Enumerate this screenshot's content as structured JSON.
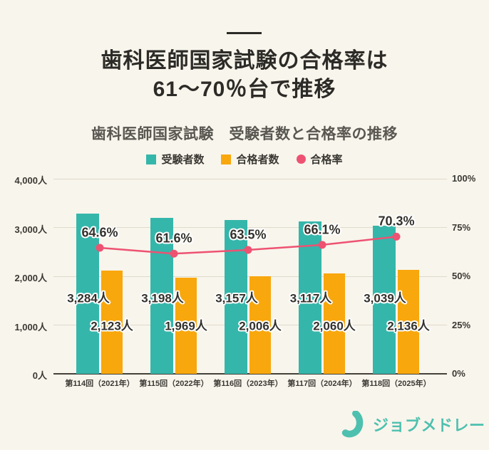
{
  "poster": {
    "title_line1": "歯科医師国家試験の合格率は",
    "title_line2": "61～70％台で推移",
    "subtitle": "歯科医師国家試験　受験者数と合格率の推移"
  },
  "colors": {
    "background": "#f8f5ec",
    "teal": "#35b6ab",
    "orange": "#f8a70d",
    "pink": "#ee5272",
    "text_dark": "#2d2b27",
    "logo_teal": "#4ec0af"
  },
  "legend": [
    {
      "label": "受験者数",
      "color": "#35b6ab",
      "shape": "square"
    },
    {
      "label": "合格者数",
      "color": "#f8a70d",
      "shape": "circle-no",
      "shape_real": "square"
    },
    {
      "label": "合格率",
      "color": "#ee5272",
      "shape": "circle"
    }
  ],
  "chart_data": {
    "type": "bar",
    "subtype": "grouped-bars-with-line",
    "title": "歯科医師国家試験　受験者数と合格率の推移",
    "categories": [
      "第114回（2021年）",
      "第115回（2022年）",
      "第116回（2023年）",
      "第117回（2024年）",
      "第118回（2025年）"
    ],
    "series": [
      {
        "name": "受験者数",
        "type": "bar",
        "color": "#35b6ab",
        "axis": "left",
        "values": [
          3284,
          3198,
          3157,
          3117,
          3039
        ],
        "labels": [
          "3,284人",
          "3,198人",
          "3,157人",
          "3,117人",
          "3,039人"
        ]
      },
      {
        "name": "合格者数",
        "type": "bar",
        "color": "#f8a70d",
        "axis": "left",
        "values": [
          2123,
          1969,
          2006,
          2060,
          2136
        ],
        "labels": [
          "2,123人",
          "1,969人",
          "2,006人",
          "2,060人",
          "2,136人"
        ]
      },
      {
        "name": "合格率",
        "type": "line",
        "color": "#ee5272",
        "axis": "right",
        "values": [
          64.6,
          61.6,
          63.5,
          66.1,
          70.3
        ],
        "labels": [
          "64.6%",
          "61.6%",
          "63.5%",
          "66.1%",
          "70.3%"
        ]
      }
    ],
    "left_axis": {
      "label_unit": "人",
      "min": 0,
      "max": 4000,
      "ticks": [
        "4,000人",
        "3,000人",
        "2,000人",
        "1,000人",
        "0人"
      ]
    },
    "right_axis": {
      "label_unit": "%",
      "min": 0,
      "max": 100,
      "ticks": [
        "100%",
        "75%",
        "50%",
        "25%",
        "0%"
      ]
    },
    "grid": true,
    "legend_position": "top"
  },
  "footer": {
    "logo_text": "ジョブメドレー"
  }
}
